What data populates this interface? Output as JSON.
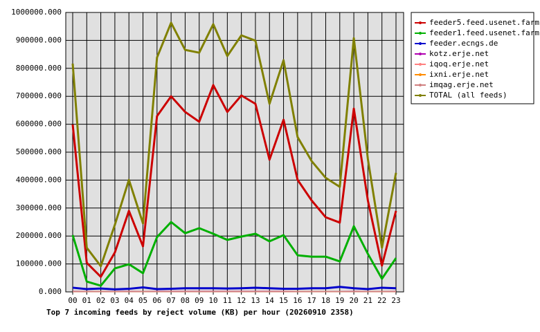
{
  "chart_data": {
    "type": "line",
    "title": "Top 7 incoming feeds by reject volume (KB) per hour (20260910 2358)",
    "categories": [
      "00",
      "01",
      "02",
      "03",
      "04",
      "05",
      "06",
      "07",
      "08",
      "09",
      "10",
      "11",
      "12",
      "13",
      "14",
      "15",
      "16",
      "17",
      "18",
      "19",
      "20",
      "21",
      "22",
      "23"
    ],
    "series": [
      {
        "name": "feeder5.feed.usenet.farm",
        "color": "#cc0000",
        "values": [
          599000,
          104000,
          54000,
          141000,
          290000,
          163000,
          629000,
          700000,
          644000,
          609000,
          740000,
          644000,
          703000,
          673000,
          473000,
          616000,
          401000,
          327000,
          267000,
          248000,
          656000,
          327000,
          94000,
          290000
        ]
      },
      {
        "name": "feeder1.feed.usenet.farm",
        "color": "#00b000",
        "values": [
          203000,
          37000,
          22000,
          84000,
          99000,
          67000,
          196000,
          250000,
          210000,
          228000,
          208000,
          186000,
          198000,
          208000,
          181000,
          203000,
          131000,
          126000,
          126000,
          109000,
          235000,
          136000,
          47000,
          121000
        ]
      },
      {
        "name": "feeder.ecngs.de",
        "color": "#0000cc",
        "values": [
          15000,
          10000,
          12000,
          9000,
          11000,
          16000,
          10000,
          11000,
          13000,
          13000,
          13000,
          12000,
          13000,
          15000,
          13000,
          11000,
          11000,
          13000,
          13000,
          18000,
          13000,
          10000,
          15000,
          13000
        ]
      },
      {
        "name": "kotz.erje.net",
        "color": "#b000b0",
        "values": [
          2000,
          1000,
          1000,
          1000,
          2000,
          1000,
          2000,
          2000,
          2000,
          2000,
          2000,
          2000,
          2000,
          2000,
          2000,
          2000,
          1000,
          1000,
          1000,
          1000,
          2000,
          1000,
          1000,
          2000
        ]
      },
      {
        "name": "iqoq.erje.net",
        "color": "#ff8080",
        "values": [
          1000,
          1000,
          1000,
          1000,
          1000,
          1000,
          1000,
          1000,
          1000,
          1000,
          1000,
          1000,
          1000,
          1000,
          1000,
          1000,
          1000,
          1000,
          1000,
          1000,
          1000,
          1000,
          1000,
          1000
        ]
      },
      {
        "name": "ixni.erje.net",
        "color": "#ff8c00",
        "values": [
          1000,
          1000,
          1000,
          1000,
          1000,
          1000,
          1000,
          1000,
          1000,
          1000,
          1000,
          1000,
          1000,
          1000,
          1000,
          1000,
          1000,
          1000,
          1000,
          1000,
          1000,
          1000,
          1000,
          1000
        ]
      },
      {
        "name": "imqag.erje.net",
        "color": "#d08080",
        "values": [
          1000,
          1000,
          1000,
          1000,
          1000,
          1000,
          1000,
          1000,
          1000,
          1000,
          1000,
          1000,
          1000,
          1000,
          1000,
          1000,
          1000,
          1000,
          1000,
          1000,
          1000,
          1000,
          1000,
          1000
        ]
      },
      {
        "name": "TOTAL (all feeds)",
        "color": "#808000",
        "values": [
          817000,
          158000,
          92000,
          240000,
          401000,
          245000,
          839000,
          963000,
          866000,
          856000,
          958000,
          844000,
          918000,
          899000,
          673000,
          829000,
          554000,
          468000,
          408000,
          376000,
          908000,
          475000,
          158000,
          426000
        ]
      }
    ],
    "ylim": [
      0,
      1000000
    ],
    "yticks": [
      {
        "value": 0,
        "label": "0.000"
      },
      {
        "value": 100000,
        "label": "100000.000"
      },
      {
        "value": 200000,
        "label": "200000.000"
      },
      {
        "value": 300000,
        "label": "300000.000"
      },
      {
        "value": 400000,
        "label": "400000.000"
      },
      {
        "value": 500000,
        "label": "500000.000"
      },
      {
        "value": 600000,
        "label": "600000.000"
      },
      {
        "value": 700000,
        "label": "700000.000"
      },
      {
        "value": 800000,
        "label": "800000.000"
      },
      {
        "value": 900000,
        "label": "900000.000"
      },
      {
        "value": 1000000,
        "label": "1000000.000"
      }
    ],
    "grid": true,
    "legend": "right"
  }
}
